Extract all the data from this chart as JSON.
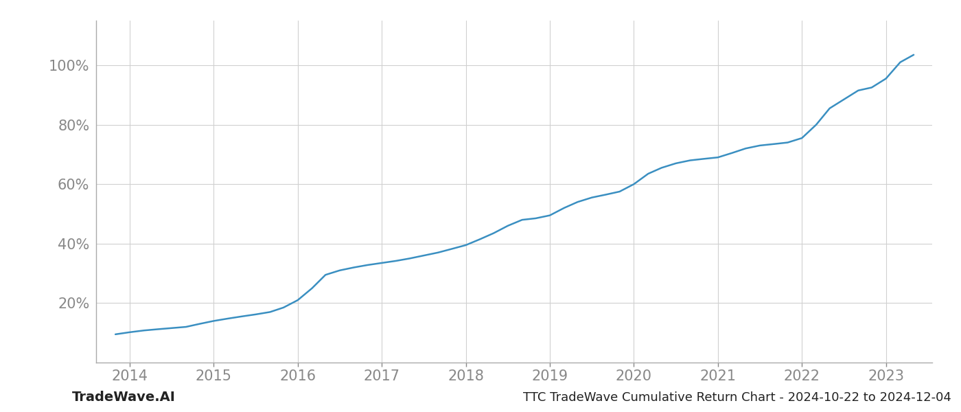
{
  "x_values": [
    2013.83,
    2014.0,
    2014.17,
    2014.33,
    2014.5,
    2014.67,
    2014.83,
    2015.0,
    2015.17,
    2015.33,
    2015.5,
    2015.67,
    2015.83,
    2016.0,
    2016.17,
    2016.33,
    2016.5,
    2016.67,
    2016.83,
    2017.0,
    2017.17,
    2017.33,
    2017.5,
    2017.67,
    2017.83,
    2018.0,
    2018.17,
    2018.33,
    2018.5,
    2018.67,
    2018.83,
    2019.0,
    2019.17,
    2019.33,
    2019.5,
    2019.67,
    2019.83,
    2020.0,
    2020.17,
    2020.33,
    2020.5,
    2020.67,
    2020.83,
    2021.0,
    2021.17,
    2021.33,
    2021.5,
    2021.67,
    2021.83,
    2022.0,
    2022.17,
    2022.33,
    2022.5,
    2022.67,
    2022.83,
    2023.0,
    2023.17,
    2023.33
  ],
  "y_values": [
    9.5,
    10.2,
    10.8,
    11.2,
    11.6,
    12.0,
    13.0,
    14.0,
    14.8,
    15.5,
    16.2,
    17.0,
    18.5,
    21.0,
    25.0,
    29.5,
    31.0,
    32.0,
    32.8,
    33.5,
    34.2,
    35.0,
    36.0,
    37.0,
    38.2,
    39.5,
    41.5,
    43.5,
    46.0,
    48.0,
    48.5,
    49.5,
    52.0,
    54.0,
    55.5,
    56.5,
    57.5,
    60.0,
    63.5,
    65.5,
    67.0,
    68.0,
    68.5,
    69.0,
    70.5,
    72.0,
    73.0,
    73.5,
    74.0,
    75.5,
    80.0,
    85.5,
    88.5,
    91.5,
    92.5,
    95.5,
    101.0,
    103.5
  ],
  "line_color": "#3a8fc1",
  "line_width": 1.8,
  "bg_color": "#ffffff",
  "grid_color": "#d0d0d0",
  "tick_color": "#888888",
  "title_text": "TTC TradeWave Cumulative Return Chart - 2024-10-22 to 2024-12-04",
  "watermark_text": "TradeWave.AI",
  "ytick_labels": [
    "20%",
    "40%",
    "60%",
    "80%",
    "100%"
  ],
  "ytick_values": [
    20,
    40,
    60,
    80,
    100
  ],
  "xtick_labels": [
    "2014",
    "2015",
    "2016",
    "2017",
    "2018",
    "2019",
    "2020",
    "2021",
    "2022",
    "2023"
  ],
  "xtick_values": [
    2014,
    2015,
    2016,
    2017,
    2018,
    2019,
    2020,
    2021,
    2022,
    2023
  ],
  "xlim": [
    2013.6,
    2023.55
  ],
  "ylim": [
    0,
    115
  ],
  "title_fontsize": 13,
  "watermark_fontsize": 14,
  "tick_fontsize": 15,
  "figsize": [
    14.0,
    6.0
  ],
  "dpi": 100
}
